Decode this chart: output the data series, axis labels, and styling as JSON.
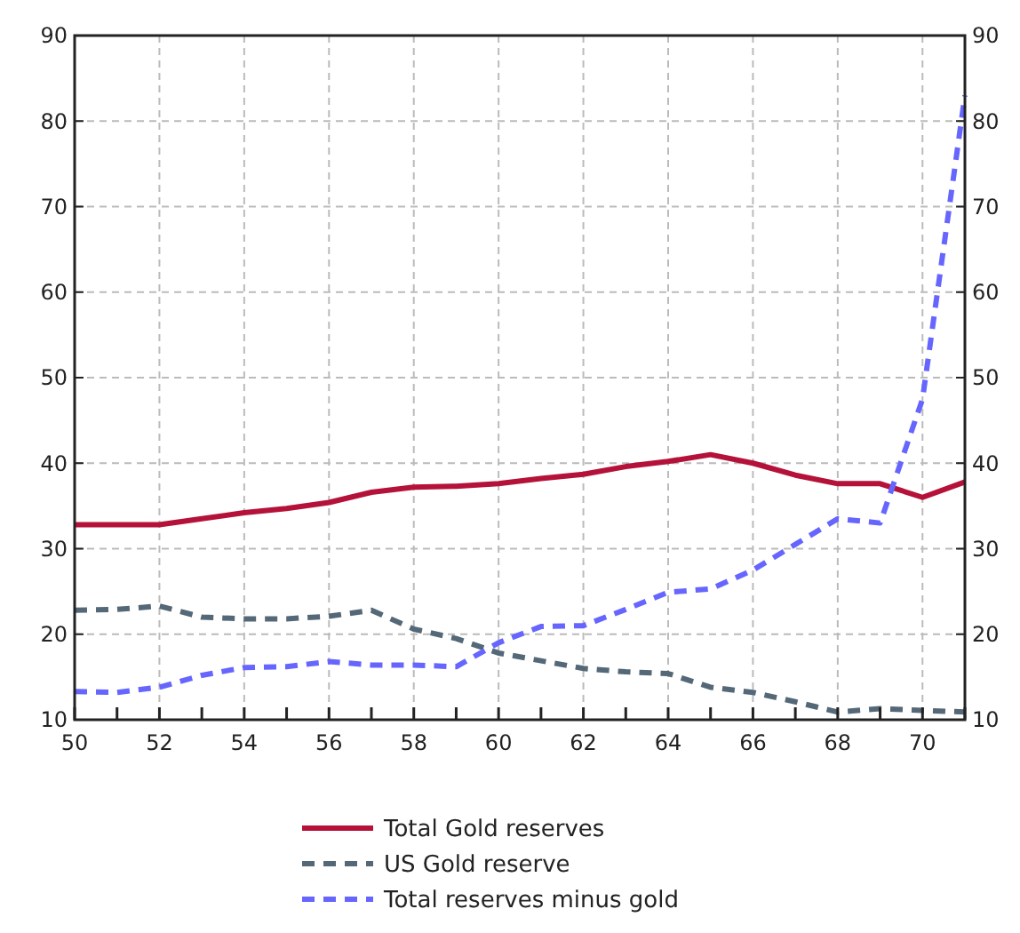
{
  "chart_data": {
    "type": "line",
    "x": [
      50,
      51,
      52,
      53,
      54,
      55,
      56,
      57,
      58,
      59,
      60,
      61,
      62,
      63,
      64,
      65,
      66,
      67,
      68,
      69,
      70,
      71
    ],
    "series": [
      {
        "name": "Total Gold reserves",
        "color": "#b5123a",
        "line_style": "solid",
        "values": [
          32.8,
          32.8,
          32.8,
          33.5,
          34.2,
          34.7,
          35.4,
          36.6,
          37.2,
          37.3,
          37.6,
          38.2,
          38.7,
          39.6,
          40.2,
          41.0,
          40.0,
          38.6,
          37.6,
          37.6,
          36.0,
          37.8
        ]
      },
      {
        "name": "US Gold reserve",
        "color": "#546878",
        "line_style": "dashed",
        "values": [
          22.8,
          22.9,
          23.3,
          22.0,
          21.8,
          21.8,
          22.1,
          22.8,
          20.6,
          19.5,
          17.8,
          16.9,
          16.0,
          15.6,
          15.4,
          13.8,
          13.2,
          12.1,
          10.9,
          11.3,
          11.1,
          10.9
        ]
      },
      {
        "name": "Total reserves minus gold",
        "color": "#6666ff",
        "line_style": "dashed",
        "values": [
          13.3,
          13.2,
          13.8,
          15.2,
          16.1,
          16.2,
          16.8,
          16.4,
          16.4,
          16.2,
          19.0,
          20.9,
          21.0,
          22.9,
          24.9,
          25.3,
          27.5,
          30.5,
          33.5,
          33.0,
          47.5,
          83.0
        ]
      }
    ],
    "xlim": [
      50,
      71
    ],
    "xticks": [
      50,
      {
        "value": 51,
        "label": null
      },
      52,
      {
        "value": 53,
        "label": null
      },
      54,
      {
        "value": 55,
        "label": null
      },
      56,
      {
        "value": 57,
        "label": null
      },
      58,
      {
        "value": 59,
        "label": null
      },
      60,
      {
        "value": 61,
        "label": null
      },
      62,
      {
        "value": 63,
        "label": null
      },
      64,
      {
        "value": 65,
        "label": null
      },
      66,
      {
        "value": 67,
        "label": null
      },
      68,
      {
        "value": 69,
        "label": null
      },
      70,
      {
        "value": 71,
        "label": null
      }
    ],
    "ylim": [
      10,
      90
    ],
    "yticks": [
      10,
      20,
      30,
      40,
      50,
      60,
      70,
      80,
      90
    ],
    "y2lim": [
      10,
      90
    ],
    "y2ticks": [
      10,
      20,
      30,
      40,
      50,
      60,
      70,
      80,
      90
    ],
    "grid": true,
    "legend": "bottom",
    "marker": "none"
  }
}
